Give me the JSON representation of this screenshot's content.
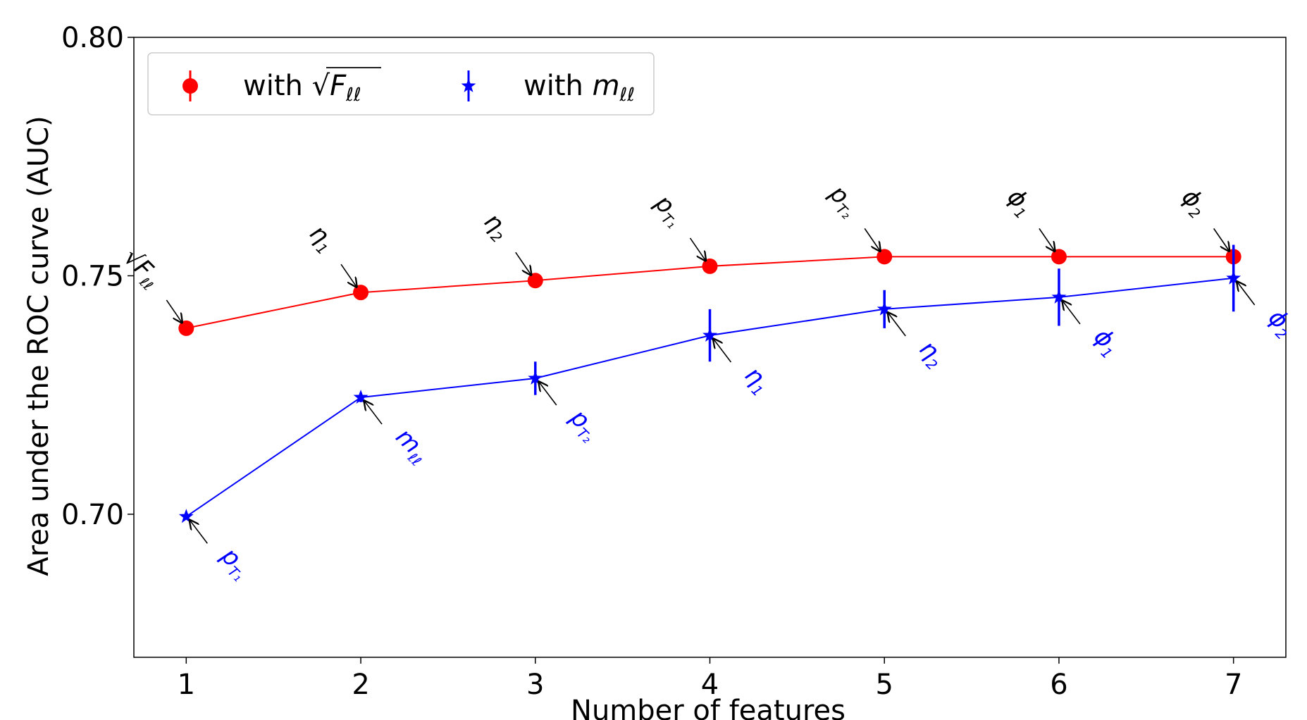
{
  "chart_data": {
    "type": "line",
    "xlabel": "Number of features",
    "ylabel": "Area under the ROC curve (AUC)",
    "xlim": [
      0.7,
      7.3
    ],
    "ylim": [
      0.67,
      0.8
    ],
    "xticks": [
      1,
      2,
      3,
      4,
      5,
      6,
      7
    ],
    "xtick_labels": [
      "1",
      "2",
      "3",
      "4",
      "5",
      "6",
      "7"
    ],
    "yticks": [
      0.7,
      0.75,
      0.8
    ],
    "ytick_labels": [
      "0.70",
      "0.75",
      "0.80"
    ],
    "grid": false,
    "legend_position": "top-left",
    "colors": {
      "red_series": "#ff0000",
      "blue_series": "#0000ff"
    },
    "x": [
      1,
      2,
      3,
      4,
      5,
      6,
      7
    ],
    "series": [
      {
        "name": "with √F_ℓℓ",
        "legend_prefix": "with",
        "legend_symbol": "F",
        "legend_sub": "ℓℓ",
        "marker": "circle",
        "color": "#ff0000",
        "values": [
          0.739,
          0.7465,
          0.749,
          0.752,
          0.754,
          0.754,
          0.754
        ],
        "errors": [
          0.0005,
          0.0005,
          0.0005,
          0.0005,
          0.0005,
          0.0005,
          0.0005
        ],
        "annotations": [
          {
            "base": "√F",
            "sub": "ℓℓ"
          },
          {
            "base": "η",
            "sub": "1"
          },
          {
            "base": "η",
            "sub": "2"
          },
          {
            "base": "p",
            "sub": "T₁"
          },
          {
            "base": "p",
            "sub": "T₂"
          },
          {
            "base": "ϕ",
            "sub": "1"
          },
          {
            "base": "ϕ",
            "sub": "2"
          }
        ]
      },
      {
        "name": "with m_ℓℓ",
        "legend_prefix": "with",
        "legend_symbol": "m",
        "legend_sub": "ℓℓ",
        "marker": "star",
        "color": "#0000ff",
        "values": [
          0.6995,
          0.7245,
          0.7285,
          0.7375,
          0.743,
          0.7455,
          0.7495
        ],
        "errors": [
          0.0005,
          0.001,
          0.0035,
          0.0055,
          0.004,
          0.006,
          0.007
        ],
        "annotations": [
          {
            "base": "p",
            "sub": "T₁"
          },
          {
            "base": "m",
            "sub": "ℓℓ"
          },
          {
            "base": "p",
            "sub": "T₂"
          },
          {
            "base": "η",
            "sub": "1"
          },
          {
            "base": "η",
            "sub": "2"
          },
          {
            "base": "ϕ",
            "sub": "1"
          },
          {
            "base": "ϕ",
            "sub": "2"
          }
        ]
      }
    ]
  }
}
